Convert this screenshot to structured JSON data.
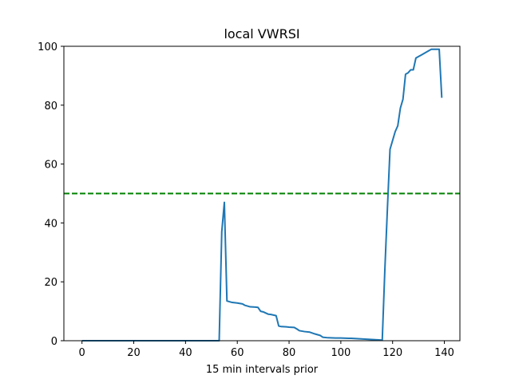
{
  "chart_data": {
    "type": "line",
    "title": "local VWRSI",
    "xlabel": "15 min intervals prior",
    "ylabel": "",
    "xlim": [
      -7,
      146
    ],
    "ylim": [
      0,
      100
    ],
    "x_ticks": [
      0,
      20,
      40,
      60,
      80,
      100,
      120,
      140
    ],
    "y_ticks": [
      0,
      20,
      40,
      60,
      80,
      100
    ],
    "grid": false,
    "series": [
      {
        "color": "#1f77b4",
        "x": [
          0,
          10,
          20,
          30,
          40,
          50,
          53,
          54,
          55,
          56,
          58,
          60,
          62,
          63,
          65,
          67,
          68,
          69,
          70,
          72,
          73,
          75,
          76,
          77,
          79,
          80,
          82,
          83,
          84,
          86,
          88,
          90,
          92,
          93,
          95,
          98,
          100,
          103,
          104,
          106,
          108,
          110,
          112,
          114,
          116,
          117,
          118,
          119,
          120,
          121,
          122,
          123,
          124,
          125,
          126,
          127,
          128,
          129,
          130,
          131,
          132,
          133,
          134,
          135,
          136,
          137,
          138,
          139
        ],
        "y": [
          0,
          0,
          0,
          0,
          0,
          0,
          0,
          37,
          47,
          13.5,
          13,
          12.8,
          12.5,
          12,
          11.5,
          11.4,
          11.3,
          10,
          9.8,
          9,
          8.9,
          8.5,
          5,
          4.8,
          4.7,
          4.6,
          4.5,
          4,
          3.4,
          3.1,
          2.9,
          2.3,
          1.8,
          1.2,
          1,
          0.9,
          0.9,
          0.8,
          0.8,
          0.7,
          0.6,
          0.5,
          0.4,
          0.3,
          0.2,
          24,
          45,
          65,
          68,
          71,
          73,
          79,
          82,
          90.5,
          91,
          92,
          92,
          96,
          96.5,
          97,
          97.5,
          98,
          98.5,
          99,
          99,
          99,
          99,
          82.5
        ]
      }
    ],
    "reference_line": {
      "y": 50,
      "color": "#008000",
      "style": "dashed"
    }
  }
}
